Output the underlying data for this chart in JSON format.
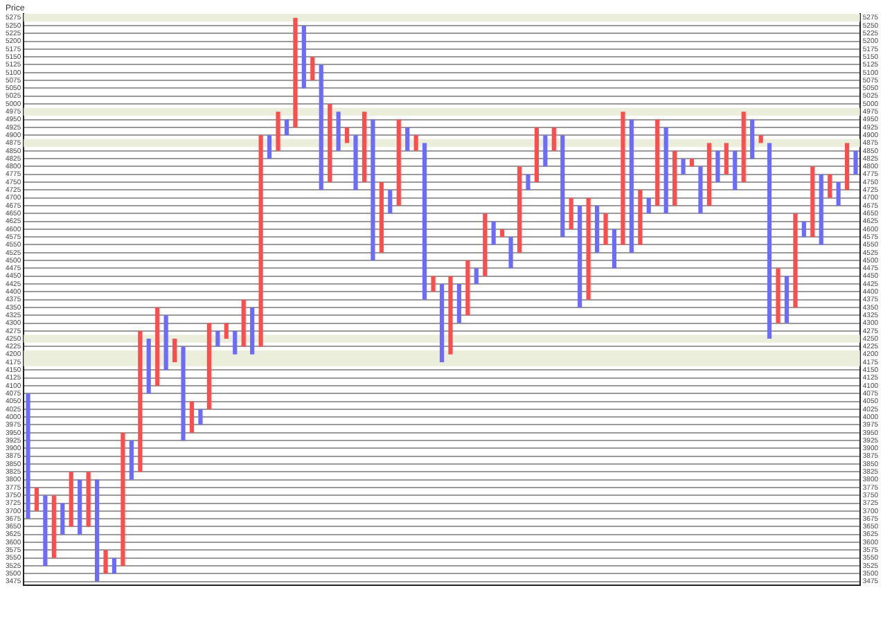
{
  "chart_data": {
    "type": "bar",
    "ylabel": "Price",
    "categories": [
      null,
      null,
      null,
      null,
      null,
      null,
      null,
      null,
      null,
      null,
      null,
      null,
      null,
      null,
      null,
      null,
      null,
      null,
      null,
      null,
      null,
      null,
      null,
      null,
      null,
      null,
      null,
      null,
      null,
      null,
      null,
      null,
      null,
      null,
      null,
      null,
      null,
      null,
      null,
      null,
      null,
      null,
      null,
      null,
      null,
      null,
      null,
      null,
      null,
      null,
      null,
      null,
      null,
      null,
      null,
      null,
      null,
      null,
      null,
      null,
      null,
      null,
      null,
      null,
      null,
      null,
      null,
      null,
      null,
      null,
      null,
      null,
      null,
      null,
      null,
      null,
      null,
      null,
      null,
      null,
      null,
      null,
      null,
      null,
      null,
      null,
      null,
      null,
      null,
      null,
      null,
      null,
      null,
      null,
      null,
      null,
      null
    ],
    "series": [
      {
        "color": "#ff4d4d",
        "values": [
          null,
          75,
          null,
          200,
          null,
          175,
          null,
          175,
          null,
          75,
          null,
          425,
          null,
          450,
          null,
          250,
          null,
          75,
          null,
          100,
          null,
          275,
          null,
          50,
          null,
          150,
          null,
          675,
          null,
          125,
          null,
          350,
          null,
          75,
          null,
          250,
          null,
          50,
          null,
          225,
          null,
          225,
          null,
          275,
          null,
          50,
          null,
          50,
          null,
          250,
          null,
          175,
          null,
          200,
          null,
          25,
          null,
          275,
          null,
          175,
          null,
          75,
          null,
          100,
          null,
          325,
          null,
          100,
          null,
          425,
          null,
          175,
          null,
          275,
          null,
          175,
          null,
          25,
          null,
          200,
          null,
          100,
          null,
          225,
          null,
          25,
          null,
          175,
          null,
          300,
          null,
          225,
          null,
          75,
          null,
          150,
          null
        ],
        "base": [
          null,
          3700,
          null,
          3550,
          null,
          3650,
          null,
          3650,
          null,
          3500,
          null,
          3525,
          null,
          3825,
          null,
          4100,
          null,
          4175,
          null,
          3950,
          null,
          4025,
          null,
          4250,
          null,
          4225,
          null,
          4225,
          null,
          4850,
          null,
          4925,
          null,
          5075,
          null,
          4750,
          null,
          4875,
          null,
          4750,
          null,
          4525,
          null,
          4675,
          null,
          4850,
          null,
          4400,
          null,
          4200,
          null,
          4325,
          null,
          4450,
          null,
          4575,
          null,
          4525,
          null,
          4750,
          null,
          4850,
          null,
          4600,
          null,
          4375,
          null,
          4550,
          null,
          4550,
          null,
          4550,
          null,
          4675,
          null,
          4675,
          null,
          4800,
          null,
          4675,
          null,
          4775,
          null,
          4750,
          null,
          4875,
          null,
          4300,
          null,
          4350,
          null,
          4575,
          null,
          4700,
          null,
          4725,
          null
        ]
      },
      {
        "color": "#6b6bff",
        "values": [
          400,
          null,
          225,
          null,
          100,
          null,
          175,
          null,
          325,
          null,
          50,
          null,
          125,
          null,
          175,
          null,
          175,
          null,
          300,
          null,
          50,
          null,
          50,
          null,
          75,
          null,
          150,
          null,
          75,
          null,
          50,
          null,
          200,
          null,
          400,
          null,
          125,
          null,
          175,
          null,
          450,
          null,
          75,
          null,
          75,
          null,
          500,
          null,
          250,
          null,
          125,
          null,
          50,
          null,
          75,
          null,
          100,
          null,
          50,
          null,
          100,
          null,
          325,
          null,
          325,
          null,
          150,
          null,
          125,
          null,
          425,
          null,
          50,
          null,
          275,
          null,
          50,
          null,
          150,
          null,
          100,
          null,
          125,
          null,
          125,
          null,
          625,
          null,
          150,
          null,
          50,
          null,
          225,
          null,
          75,
          null,
          75
        ],
        "base": [
          3675,
          null,
          3525,
          null,
          3625,
          null,
          3625,
          null,
          3475,
          null,
          3500,
          null,
          3800,
          null,
          4075,
          null,
          4150,
          null,
          3925,
          null,
          3975,
          null,
          4225,
          null,
          4200,
          null,
          4200,
          null,
          4825,
          null,
          4900,
          null,
          5050,
          null,
          4725,
          null,
          4850,
          null,
          4725,
          null,
          4500,
          null,
          4650,
          null,
          4850,
          null,
          4375,
          null,
          4175,
          null,
          4300,
          null,
          4425,
          null,
          4550,
          null,
          4475,
          null,
          4725,
          null,
          4800,
          null,
          4575,
          null,
          4350,
          null,
          4525,
          null,
          4475,
          null,
          4525,
          null,
          4650,
          null,
          4650,
          null,
          4775,
          null,
          4650,
          null,
          4750,
          null,
          4725,
          null,
          4825,
          null,
          4250,
          null,
          4300,
          null,
          4575,
          null,
          4550,
          null,
          4675,
          null,
          4775
        ]
      }
    ],
    "bands": [
      {
        "axis": "y",
        "from": 5262.5,
        "to": 5287.5,
        "color": "#eaeedb"
      },
      {
        "axis": "y",
        "from": 4962.5,
        "to": 4987.5,
        "color": "#eaeedb"
      },
      {
        "axis": "y",
        "from": 4862.5,
        "to": 4887.5,
        "color": "#eaeedb"
      },
      {
        "axis": "y",
        "from": 4237.5,
        "to": 4262.5,
        "color": "#eaeedb"
      },
      {
        "axis": "y",
        "from": 4162.5,
        "to": 4212.5,
        "color": "#eaeedb"
      }
    ],
    "ylim": [
      3462.5,
      5287.5
    ],
    "yticks": [
      3475,
      3500,
      3525,
      3550,
      3575,
      3600,
      3625,
      3650,
      3675,
      3700,
      3725,
      3750,
      3775,
      3800,
      3825,
      3850,
      3875,
      3900,
      3925,
      3950,
      3975,
      4000,
      4025,
      4050,
      4075,
      4100,
      4125,
      4150,
      4175,
      4200,
      4225,
      4250,
      4275,
      4300,
      4325,
      4350,
      4375,
      4400,
      4425,
      4450,
      4475,
      4500,
      4525,
      4550,
      4575,
      4600,
      4625,
      4650,
      4675,
      4700,
      4725,
      4750,
      4775,
      4800,
      4825,
      4850,
      4875,
      4900,
      4925,
      4950,
      4975,
      5000,
      5025,
      5050,
      5075,
      5100,
      5125,
      5150,
      5175,
      5200,
      5225,
      5250,
      5275
    ],
    "y2lim": [
      3462.5,
      5287.5
    ],
    "y2ticks": [
      3475,
      3500,
      3525,
      3550,
      3575,
      3600,
      3625,
      3650,
      3675,
      3700,
      3725,
      3750,
      3775,
      3800,
      3825,
      3850,
      3875,
      3900,
      3925,
      3950,
      3975,
      4000,
      4025,
      4050,
      4075,
      4100,
      4125,
      4150,
      4175,
      4200,
      4225,
      4250,
      4275,
      4300,
      4325,
      4350,
      4375,
      4400,
      4425,
      4450,
      4475,
      4500,
      4525,
      4550,
      4575,
      4600,
      4625,
      4650,
      4675,
      4700,
      4725,
      4750,
      4775,
      4800,
      4825,
      4850,
      4875,
      4900,
      4925,
      4950,
      4975,
      5000,
      5025,
      5050,
      5075,
      5100,
      5125,
      5150,
      5175,
      5200,
      5225,
      5250,
      5275
    ],
    "grid": "y",
    "legend": false
  }
}
